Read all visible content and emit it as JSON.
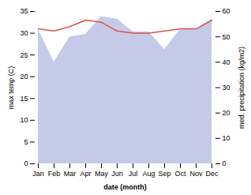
{
  "chart_data": {
    "type": "line",
    "xlabel": "date (month)",
    "ylabel": "max temp (C)",
    "y2label": "med. precipitation (kg/m2)",
    "categories": [
      "Jan",
      "Feb",
      "Mar",
      "Apr",
      "May",
      "Jun",
      "Jul",
      "Aug",
      "Sep",
      "Oct",
      "Nov",
      "Dec"
    ],
    "series": [
      {
        "type": "area",
        "axis": "y2",
        "color": "#c5cae9",
        "values": [
          53,
          40,
          50,
          51,
          58,
          57,
          52,
          52,
          45,
          53,
          53,
          57
        ]
      },
      {
        "type": "line",
        "color": "#d9534f",
        "values": [
          31.0,
          30.5,
          31.5,
          33.0,
          32.5,
          30.5,
          30.0,
          30.0,
          30.5,
          31.0,
          31.0,
          33.0
        ]
      }
    ],
    "ylim": [
      0,
      35
    ],
    "yticks": [
      0,
      5,
      10,
      15,
      20,
      25,
      30,
      35
    ],
    "y2lim": [
      0,
      60
    ],
    "y2ticks": [
      0,
      10,
      20,
      30,
      40,
      50,
      60
    ],
    "grid": false
  }
}
